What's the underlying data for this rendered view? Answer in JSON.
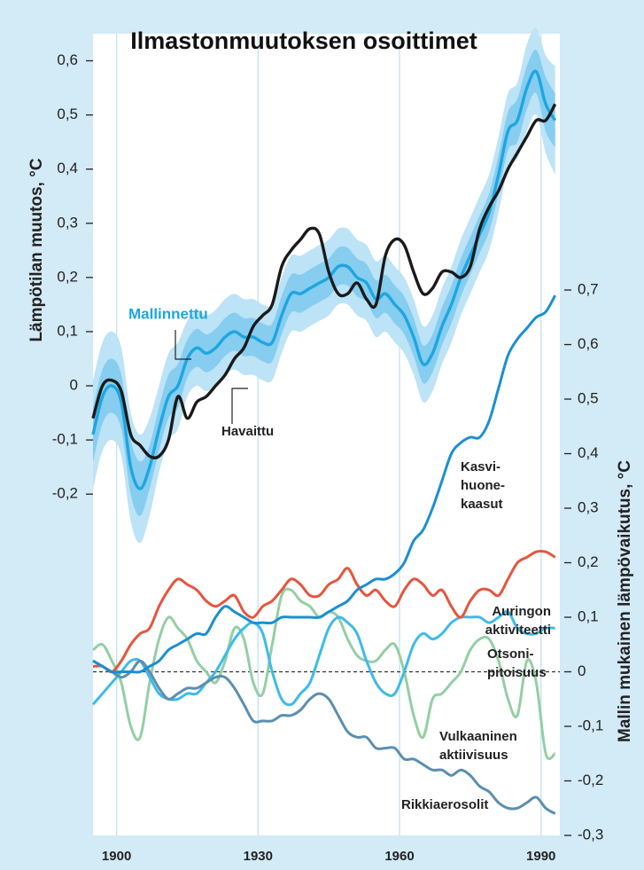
{
  "chart_data": {
    "type": "line",
    "title": "Ilmastonmuutoksen osoittimet",
    "y_label": "Lämpötilan muutos, °C",
    "y2_label": "Mallin mukainen lämpövaikutus, °C",
    "x": [
      1895,
      1897,
      1899,
      1901,
      1903,
      1905,
      1907,
      1909,
      1911,
      1913,
      1915,
      1917,
      1919,
      1921,
      1923,
      1925,
      1927,
      1929,
      1931,
      1933,
      1935,
      1937,
      1939,
      1941,
      1943,
      1945,
      1947,
      1949,
      1951,
      1953,
      1955,
      1957,
      1959,
      1961,
      1963,
      1965,
      1967,
      1969,
      1971,
      1973,
      1975,
      1977,
      1979,
      1981,
      1983,
      1985,
      1987,
      1989,
      1991,
      1993
    ],
    "xlim": [
      1895,
      1994
    ],
    "xticks": [
      1900,
      1930,
      1960,
      1990
    ],
    "ylim": [
      -0.83,
      0.65
    ],
    "yticks": [
      {
        "value": -0.2,
        "label": "-0,2"
      },
      {
        "value": -0.1,
        "label": "-0,1"
      },
      0,
      {
        "value": 0.1,
        "label": "0,1"
      },
      {
        "value": 0.2,
        "label": "0,2"
      },
      {
        "value": 0.3,
        "label": "0,3"
      },
      {
        "value": 0.4,
        "label": "0,4"
      },
      {
        "value": 0.5,
        "label": "0,5"
      },
      {
        "value": 0.6,
        "label": "0,6"
      }
    ],
    "y2lim": [
      -0.3,
      1.17
    ],
    "y2ticks": [
      {
        "value": -0.3,
        "label": "-0,3"
      },
      {
        "value": -0.2,
        "label": "-0,2"
      },
      {
        "value": -0.1,
        "label": "-0,1"
      },
      0,
      {
        "value": 0.1,
        "label": "0,1"
      },
      {
        "value": 0.2,
        "label": "0,2"
      },
      {
        "value": 0.3,
        "label": "0,3"
      },
      {
        "value": 0.4,
        "label": "0,4"
      },
      {
        "value": 0.5,
        "label": "0,5"
      },
      {
        "value": 0.6,
        "label": "0,6"
      },
      {
        "value": 0.7,
        "label": "0,7"
      }
    ],
    "series": [
      {
        "name": [
          "Mallinnettu"
        ],
        "color": "#1ea6e0",
        "values": [
          -0.09,
          -0.02,
          0,
          -0.03,
          -0.15,
          -0.19,
          -0.15,
          -0.08,
          -0.02,
          0,
          0.05,
          0.07,
          0.06,
          0.07,
          0.09,
          0.1,
          0.09,
          0.09,
          0.08,
          0.08,
          0.13,
          0.17,
          0.17,
          0.18,
          0.19,
          0.2,
          0.22,
          0.22,
          0.2,
          0.19,
          0.16,
          0.17,
          0.15,
          0.13,
          0.09,
          0.04,
          0.06,
          0.11,
          0.15,
          0.2,
          0.24,
          0.28,
          0.32,
          0.39,
          0.47,
          0.49,
          0.55,
          0.58,
          0.52,
          0.49
        ],
        "spread_inner": [
          0.05,
          0.05,
          0.05,
          0.05,
          0.05,
          0.05,
          0.04,
          0.04,
          0.04,
          0.04,
          0.035,
          0.035,
          0.035,
          0.035,
          0.035,
          0.035,
          0.035,
          0.035,
          0.035,
          0.035,
          0.035,
          0.035,
          0.035,
          0.035,
          0.035,
          0.035,
          0.035,
          0.035,
          0.035,
          0.035,
          0.035,
          0.035,
          0.035,
          0.035,
          0.035,
          0.035,
          0.035,
          0.035,
          0.035,
          0.035,
          0.035,
          0.035,
          0.035,
          0.035,
          0.035,
          0.04,
          0.04,
          0.04,
          0.05,
          0.05
        ],
        "spread_outer": [
          0.1,
          0.1,
          0.1,
          0.1,
          0.1,
          0.1,
          0.09,
          0.08,
          0.08,
          0.08,
          0.07,
          0.07,
          0.07,
          0.07,
          0.07,
          0.07,
          0.07,
          0.07,
          0.07,
          0.07,
          0.07,
          0.07,
          0.07,
          0.07,
          0.07,
          0.07,
          0.07,
          0.07,
          0.07,
          0.07,
          0.07,
          0.07,
          0.07,
          0.07,
          0.07,
          0.07,
          0.07,
          0.07,
          0.07,
          0.07,
          0.07,
          0.07,
          0.07,
          0.07,
          0.07,
          0.07,
          0.08,
          0.08,
          0.09,
          0.1
        ]
      },
      {
        "name": [
          "Havaittu"
        ],
        "color": "#1a1a1a",
        "values": [
          -0.06,
          0,
          0.01,
          -0.01,
          -0.09,
          -0.11,
          -0.13,
          -0.13,
          -0.1,
          -0.02,
          -0.06,
          -0.03,
          -0.02,
          0,
          0.02,
          0.05,
          0.07,
          0.11,
          0.13,
          0.15,
          0.22,
          0.25,
          0.27,
          0.29,
          0.28,
          0.21,
          0.17,
          0.17,
          0.19,
          0.16,
          0.15,
          0.24,
          0.27,
          0.26,
          0.21,
          0.17,
          0.18,
          0.21,
          0.21,
          0.2,
          0.22,
          0.29,
          0.33,
          0.36,
          0.4,
          0.43,
          0.46,
          0.49,
          0.49,
          0.52
        ]
      },
      {
        "name": [
          "Vulkaaninen",
          "aktiivisuus"
        ],
        "color": "#93cfa3",
        "axis": "y2",
        "values": [
          0.04,
          0.05,
          0.02,
          -0.02,
          -0.1,
          -0.12,
          -0.02,
          0.06,
          0.1,
          0.08,
          0.06,
          0.02,
          0,
          -0.02,
          0.02,
          0.08,
          0.06,
          -0.02,
          -0.04,
          0.05,
          0.14,
          0.15,
          0.13,
          0.12,
          0.1,
          0.11,
          0.1,
          0.06,
          0.03,
          0.02,
          0.02,
          0.04,
          0.05,
          0,
          -0.08,
          -0.12,
          -0.05,
          -0.04,
          -0.02,
          0,
          0.04,
          0.06,
          0.06,
          0.02,
          -0.05,
          -0.08,
          0.02,
          -0.02,
          -0.15,
          -0.15
        ]
      },
      {
        "name": [
          "Otsoni-",
          "pitoisuus"
        ],
        "color": "#3dbbe9",
        "axis": "y2",
        "values": [
          -0.06,
          -0.04,
          -0.02,
          0,
          0.02,
          0.02,
          -0.01,
          -0.04,
          -0.05,
          -0.05,
          -0.04,
          -0.04,
          -0.02,
          0,
          0.03,
          0.06,
          0.08,
          0.09,
          0.07,
          0,
          -0.05,
          -0.06,
          -0.04,
          -0.02,
          0.03,
          0.08,
          0.1,
          0.09,
          0.07,
          0.02,
          -0.02,
          -0.04,
          -0.04,
          0,
          0.05,
          0.07,
          0.06,
          0.07,
          0.09,
          0.1,
          0.1,
          0.1,
          0.09,
          0.1,
          0.11,
          0.08,
          0.07,
          0.07,
          0.08,
          0.08
        ]
      },
      {
        "name": [
          "Rikkiaerosolit"
        ],
        "color": "#5b8fb0",
        "axis": "y2",
        "values": [
          0.02,
          0.01,
          0,
          -0.01,
          0,
          0.02,
          0,
          -0.03,
          -0.05,
          -0.04,
          -0.03,
          -0.03,
          -0.02,
          -0.01,
          -0.01,
          -0.03,
          -0.06,
          -0.09,
          -0.09,
          -0.09,
          -0.08,
          -0.08,
          -0.07,
          -0.05,
          -0.04,
          -0.05,
          -0.08,
          -0.11,
          -0.12,
          -0.12,
          -0.14,
          -0.14,
          -0.14,
          -0.16,
          -0.16,
          -0.17,
          -0.18,
          -0.18,
          -0.19,
          -0.18,
          -0.19,
          -0.21,
          -0.22,
          -0.24,
          -0.25,
          -0.25,
          -0.24,
          -0.23,
          -0.25,
          -0.26
        ]
      },
      {
        "name": [
          "Auringon",
          "aktiviteetti"
        ],
        "color": "#e6553d",
        "axis": "y2",
        "values": [
          0.01,
          0.01,
          0,
          0.02,
          0.05,
          0.07,
          0.08,
          0.12,
          0.15,
          0.17,
          0.16,
          0.15,
          0.13,
          0.12,
          0.13,
          0.14,
          0.11,
          0.1,
          0.12,
          0.13,
          0.15,
          0.17,
          0.16,
          0.14,
          0.14,
          0.16,
          0.17,
          0.19,
          0.16,
          0.14,
          0.15,
          0.13,
          0.12,
          0.15,
          0.17,
          0.16,
          0.14,
          0.15,
          0.12,
          0.1,
          0.13,
          0.15,
          0.15,
          0.14,
          0.17,
          0.2,
          0.21,
          0.22,
          0.22,
          0.21
        ]
      },
      {
        "name": [
          "Kasvi-",
          "huone-",
          "kaasut"
        ],
        "color": "#1b8fd2",
        "axis": "y2",
        "values": [
          0.02,
          0.01,
          0,
          0,
          0,
          0,
          0.01,
          0.02,
          0.04,
          0.05,
          0.06,
          0.07,
          0.07,
          0.1,
          0.12,
          0.11,
          0.1,
          0.09,
          0.09,
          0.09,
          0.1,
          0.1,
          0.1,
          0.1,
          0.1,
          0.11,
          0.12,
          0.13,
          0.15,
          0.16,
          0.17,
          0.17,
          0.18,
          0.2,
          0.24,
          0.26,
          0.3,
          0.35,
          0.4,
          0.42,
          0.43,
          0.43,
          0.46,
          0.52,
          0.58,
          0.61,
          0.63,
          0.65,
          0.66,
          0.69
        ]
      }
    ]
  }
}
